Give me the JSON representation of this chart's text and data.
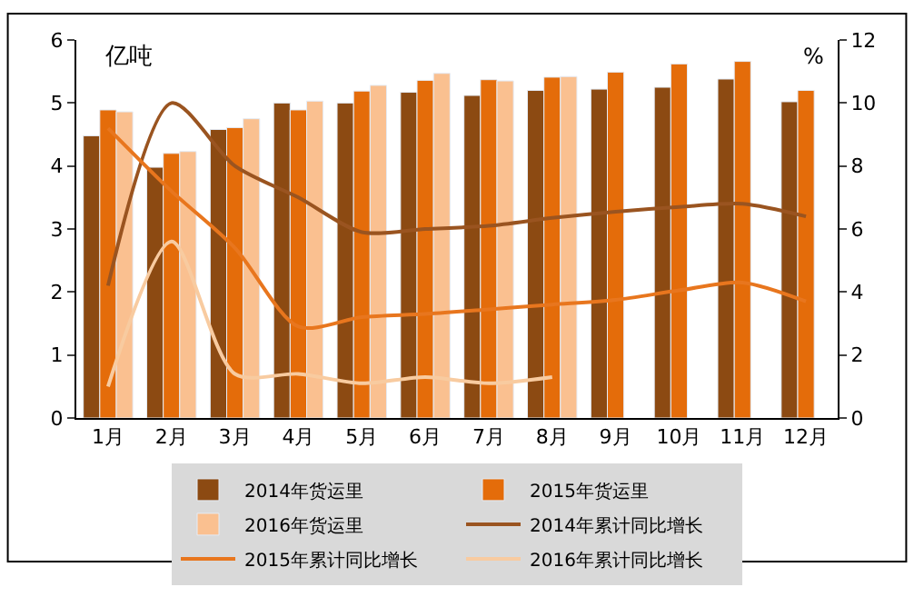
{
  "chart_data": {
    "type": "bar",
    "ylabel": "亿吨",
    "y2label": "%",
    "categories": [
      "1月",
      "2月",
      "3月",
      "4月",
      "5月",
      "6月",
      "7月",
      "8月",
      "9月",
      "10月",
      "11月",
      "12月"
    ],
    "series": [
      {
        "name": "2014年货运里",
        "color": "#8c4a12",
        "values": [
          4.48,
          3.98,
          4.58,
          5.0,
          5.0,
          5.17,
          5.12,
          5.2,
          5.22,
          5.25,
          5.38,
          5.02
        ]
      },
      {
        "name": "2015年货运里",
        "color": "#e46c0a",
        "values": [
          4.89,
          4.2,
          4.61,
          4.89,
          5.19,
          5.36,
          5.37,
          5.41,
          5.49,
          5.62,
          5.66,
          5.2
        ]
      },
      {
        "name": "2016年货运里",
        "color": "#fac090",
        "values": [
          4.86,
          4.23,
          4.75,
          5.03,
          5.28,
          5.47,
          5.35,
          5.42,
          null,
          null,
          null,
          null
        ]
      },
      {
        "name": "2014年累计同比增长",
        "type": "line",
        "axis": "y2",
        "color": "#9a5420",
        "values": [
          4.2,
          10.0,
          8.0,
          7.0,
          5.9,
          6.0,
          6.1,
          6.35,
          6.55,
          6.7,
          6.8,
          6.4
        ]
      },
      {
        "name": "2015年累计同比增长",
        "type": "line",
        "axis": "y2",
        "color": "#e8761e",
        "values": [
          9.2,
          7.2,
          5.4,
          2.9,
          3.2,
          3.3,
          3.45,
          3.6,
          3.75,
          4.05,
          4.3,
          3.7
        ]
      },
      {
        "name": "2016年累计同比增长",
        "type": "line",
        "axis": "y2",
        "color": "#f8cba0",
        "values": [
          1.0,
          5.6,
          1.4,
          1.4,
          1.1,
          1.3,
          1.1,
          1.3,
          null,
          null,
          null,
          null
        ]
      }
    ],
    "ylim": [
      0,
      6
    ],
    "yticks": [
      0,
      1,
      2,
      3,
      4,
      5,
      6
    ],
    "y2lim": [
      0,
      12
    ],
    "y2ticks": [
      0,
      2,
      4,
      6,
      8,
      10,
      12
    ],
    "legend": "bottom",
    "marker": "none",
    "line_style": "solid"
  }
}
